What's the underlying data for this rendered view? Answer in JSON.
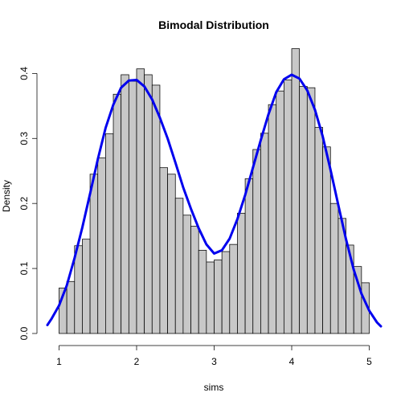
{
  "chart_data": {
    "type": "bar",
    "title": "Bimodal Distribution",
    "xlabel": "sims",
    "ylabel": "Density",
    "xlim": [
      0.85,
      5.15
    ],
    "ylim": [
      0.0,
      0.44
    ],
    "x_ticks": [
      1,
      2,
      3,
      4,
      5
    ],
    "y_ticks": [
      0.0,
      0.1,
      0.2,
      0.3,
      0.4
    ],
    "grid": false,
    "bin_edges": [
      1.0,
      1.1,
      1.2,
      1.3,
      1.4,
      1.5,
      1.6,
      1.7,
      1.8,
      1.9,
      2.0,
      2.1,
      2.2,
      2.3,
      2.4,
      2.5,
      2.6,
      2.7,
      2.8,
      2.9,
      3.0,
      3.1,
      3.2,
      3.3,
      3.4,
      3.5,
      3.6,
      3.7,
      3.8,
      3.9,
      4.0,
      4.1,
      4.2,
      4.3,
      4.4,
      4.5,
      4.6,
      4.7,
      4.8,
      4.9,
      5.0
    ],
    "values": [
      0.07,
      0.08,
      0.135,
      0.145,
      0.245,
      0.27,
      0.307,
      0.368,
      0.398,
      0.388,
      0.407,
      0.398,
      0.382,
      0.255,
      0.245,
      0.208,
      0.182,
      0.165,
      0.128,
      0.11,
      0.113,
      0.126,
      0.137,
      0.185,
      0.238,
      0.283,
      0.308,
      0.352,
      0.373,
      0.39,
      0.438,
      0.38,
      0.378,
      0.317,
      0.287,
      0.2,
      0.177,
      0.136,
      0.103,
      0.078
    ],
    "series": [
      {
        "type": "line",
        "color": "#0000ee",
        "x": [
          0.85,
          0.9,
          1.0,
          1.1,
          1.2,
          1.3,
          1.4,
          1.5,
          1.6,
          1.7,
          1.8,
          1.9,
          2.0,
          2.1,
          2.2,
          2.3,
          2.4,
          2.5,
          2.6,
          2.7,
          2.8,
          2.9,
          3.0,
          3.1,
          3.2,
          3.3,
          3.4,
          3.5,
          3.6,
          3.7,
          3.8,
          3.9,
          4.0,
          4.1,
          4.2,
          4.3,
          4.4,
          4.5,
          4.6,
          4.7,
          4.8,
          4.9,
          5.0,
          5.1,
          5.15
        ],
        "y": [
          0.013,
          0.022,
          0.043,
          0.074,
          0.116,
          0.163,
          0.215,
          0.268,
          0.316,
          0.352,
          0.378,
          0.389,
          0.39,
          0.38,
          0.36,
          0.332,
          0.3,
          0.263,
          0.225,
          0.192,
          0.162,
          0.137,
          0.123,
          0.128,
          0.146,
          0.176,
          0.213,
          0.255,
          0.297,
          0.337,
          0.371,
          0.391,
          0.398,
          0.392,
          0.374,
          0.344,
          0.303,
          0.252,
          0.198,
          0.145,
          0.098,
          0.061,
          0.035,
          0.017,
          0.011
        ]
      }
    ]
  }
}
